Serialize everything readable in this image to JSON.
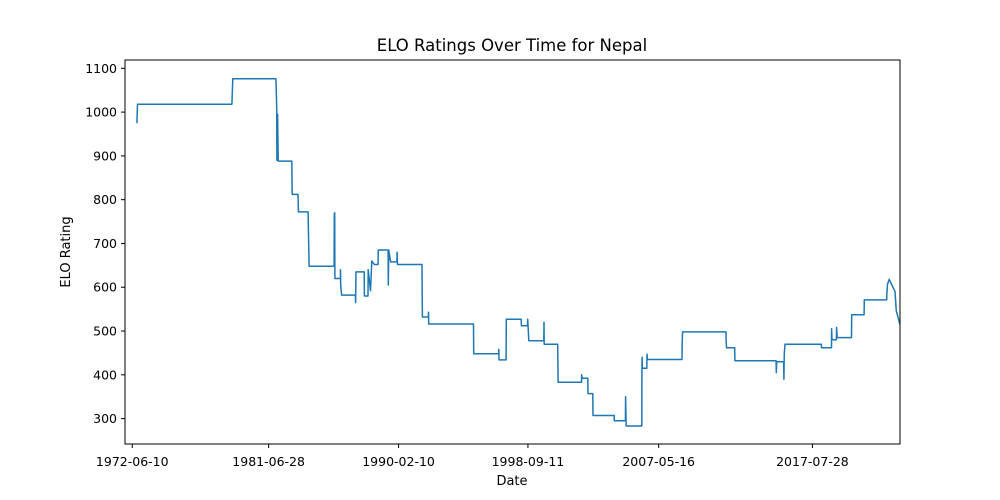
{
  "chart_data": {
    "type": "line",
    "title": "ELO Ratings Over Time for Nepal",
    "xlabel": "Date",
    "ylabel": "ELO Rating",
    "x_ticks": [
      "1972-06-10",
      "1981-06-28",
      "1990-02-10",
      "1998-09-11",
      "2007-05-16",
      "2017-07-28"
    ],
    "y_ticks": [
      300,
      400,
      500,
      600,
      700,
      800,
      900,
      1000,
      1100
    ],
    "xlim": [
      "1971-12-17",
      "2023-05-20"
    ],
    "ylim": [
      242,
      1119
    ],
    "grid": false,
    "legend": "none",
    "color": "#1f77b4",
    "series": [
      {
        "points": [
          [
            "1972-10-01",
            975
          ],
          [
            "1972-10-15",
            1018
          ],
          [
            "1979-01-20",
            1018
          ],
          [
            "1979-02-10",
            1076
          ],
          [
            "1981-12-20",
            1076
          ],
          [
            "1982-01-10",
            1012
          ],
          [
            "1982-01-15",
            890
          ],
          [
            "1982-02-01",
            995
          ],
          [
            "1982-02-15",
            888
          ],
          [
            "1983-01-10",
            888
          ],
          [
            "1983-01-20",
            812
          ],
          [
            "1983-06-10",
            812
          ],
          [
            "1983-06-20",
            772
          ],
          [
            "1984-02-10",
            772
          ],
          [
            "1984-02-20",
            720
          ],
          [
            "1984-03-05",
            648
          ],
          [
            "1985-11-01",
            648
          ],
          [
            "1985-11-05",
            767
          ],
          [
            "1985-11-15",
            770
          ],
          [
            "1985-11-20",
            620
          ],
          [
            "1986-04-01",
            620
          ],
          [
            "1986-04-05",
            640
          ],
          [
            "1986-04-10",
            605
          ],
          [
            "1986-05-01",
            582
          ],
          [
            "1987-04-01",
            582
          ],
          [
            "1987-04-05",
            565
          ],
          [
            "1987-04-15",
            635
          ],
          [
            "1987-11-01",
            635
          ],
          [
            "1987-11-05",
            580
          ],
          [
            "1988-02-01",
            580
          ],
          [
            "1988-02-05",
            640
          ],
          [
            "1988-04-01",
            592
          ],
          [
            "1988-05-01",
            660
          ],
          [
            "1988-07-01",
            652
          ],
          [
            "1988-10-01",
            652
          ],
          [
            "1988-10-05",
            685
          ],
          [
            "1989-06-01",
            685
          ],
          [
            "1989-06-05",
            605
          ],
          [
            "1989-06-15",
            685
          ],
          [
            "1989-08-01",
            658
          ],
          [
            "1990-01-01",
            658
          ],
          [
            "1990-01-05",
            680
          ],
          [
            "1990-01-15",
            652
          ],
          [
            "1991-09-01",
            652
          ],
          [
            "1991-09-05",
            582
          ],
          [
            "1991-09-10",
            532
          ],
          [
            "1992-02-01",
            532
          ],
          [
            "1992-02-05",
            543
          ],
          [
            "1992-02-10",
            516
          ],
          [
            "1995-02-01",
            516
          ],
          [
            "1995-02-05",
            448
          ],
          [
            "1996-10-01",
            448
          ],
          [
            "1996-10-05",
            458
          ],
          [
            "1996-10-10",
            434
          ],
          [
            "1997-04-01",
            434
          ],
          [
            "1997-04-05",
            527
          ],
          [
            "1998-04-01",
            527
          ],
          [
            "1998-04-05",
            512
          ],
          [
            "1998-09-01",
            512
          ],
          [
            "1998-09-05",
            527
          ],
          [
            "1998-10-01",
            478
          ],
          [
            "1999-10-01",
            478
          ],
          [
            "1999-10-05",
            520
          ],
          [
            "1999-10-10",
            470
          ],
          [
            "2000-09-01",
            470
          ],
          [
            "2000-09-10",
            383
          ],
          [
            "2002-04-01",
            383
          ],
          [
            "2002-04-05",
            400
          ],
          [
            "2002-04-15",
            392
          ],
          [
            "2002-09-01",
            392
          ],
          [
            "2002-09-05",
            357
          ],
          [
            "2003-01-01",
            357
          ],
          [
            "2003-01-05",
            307
          ],
          [
            "2004-06-01",
            307
          ],
          [
            "2004-06-05",
            295
          ],
          [
            "2005-03-01",
            295
          ],
          [
            "2005-03-05",
            350
          ],
          [
            "2005-03-20",
            283
          ],
          [
            "2006-04-01",
            283
          ],
          [
            "2006-04-05",
            395
          ],
          [
            "2006-04-10",
            440
          ],
          [
            "2006-04-15",
            415
          ],
          [
            "2006-08-01",
            415
          ],
          [
            "2006-08-05",
            447
          ],
          [
            "2006-08-15",
            435
          ],
          [
            "2008-12-01",
            435
          ],
          [
            "2008-12-05",
            475
          ],
          [
            "2008-12-15",
            498
          ],
          [
            "2011-11-01",
            498
          ],
          [
            "2011-11-05",
            480
          ],
          [
            "2011-11-15",
            462
          ],
          [
            "2012-06-01",
            462
          ],
          [
            "2012-06-05",
            432
          ],
          [
            "2015-03-01",
            432
          ],
          [
            "2015-03-05",
            405
          ],
          [
            "2015-03-15",
            430
          ],
          [
            "2015-09-01",
            430
          ],
          [
            "2015-09-05",
            390
          ],
          [
            "2015-09-15",
            448
          ],
          [
            "2015-10-01",
            470
          ],
          [
            "2018-03-01",
            470
          ],
          [
            "2018-03-05",
            462
          ],
          [
            "2018-11-01",
            462
          ],
          [
            "2018-11-05",
            505
          ],
          [
            "2018-11-15",
            480
          ],
          [
            "2019-03-01",
            480
          ],
          [
            "2019-03-05",
            508
          ],
          [
            "2019-03-20",
            485
          ],
          [
            "2020-03-01",
            485
          ],
          [
            "2020-03-05",
            537
          ],
          [
            "2021-01-01",
            537
          ],
          [
            "2021-01-05",
            571
          ],
          [
            "2022-07-01",
            571
          ],
          [
            "2022-07-05",
            583
          ],
          [
            "2022-07-20",
            607
          ],
          [
            "2022-09-01",
            618
          ],
          [
            "2023-01-20",
            590
          ],
          [
            "2023-02-20",
            546
          ],
          [
            "2023-05-20",
            515
          ]
        ]
      }
    ]
  }
}
